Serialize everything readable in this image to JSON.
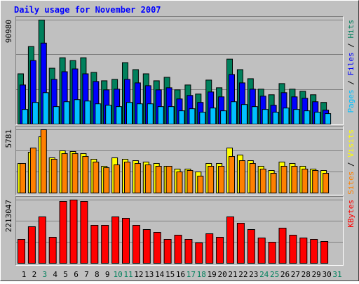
{
  "chart_data": {
    "type": "bar",
    "title": "Daily usage for November 2007",
    "categories": [
      1,
      2,
      3,
      4,
      5,
      6,
      7,
      8,
      9,
      10,
      11,
      12,
      13,
      14,
      15,
      16,
      17,
      18,
      19,
      20,
      21,
      22,
      23,
      24,
      25,
      26,
      27,
      28,
      29,
      30,
      31
    ],
    "category_colors": [
      "#000000",
      "#000000",
      "#00805C",
      "#000000",
      "#000000",
      "#000000",
      "#000000",
      "#000000",
      "#000000",
      "#00805C",
      "#00805C",
      "#000000",
      "#000000",
      "#000000",
      "#000000",
      "#000000",
      "#00805C",
      "#00805C",
      "#000000",
      "#000000",
      "#000000",
      "#000000",
      "#000000",
      "#00805C",
      "#00805C",
      "#000000",
      "#000000",
      "#000000",
      "#000000",
      "#000000",
      "#00805C"
    ],
    "legend_separator": " / ",
    "grid": true,
    "panels": [
      {
        "ylim": [
          0,
          90980
        ],
        "yticks": [
          90980
        ],
        "series": [
          {
            "name": "Hits",
            "color": "#00805C",
            "values": [
              43964,
              67777,
              90980,
              48850,
              58010,
              55567,
              58010,
              45186,
              37858,
              39080,
              53734,
              47628,
              43964,
              37858,
              40911,
              29920,
              34194,
              26256,
              38468,
              31752,
              56786,
              47628,
              39690,
              30531,
              25646,
              35416,
              30531,
              28699,
              25646,
              18929,
              null
            ]
          },
          {
            "name": "Files",
            "color": "#0000FF",
            "values": [
              34194,
              55567,
              70830,
              39078,
              45795,
              48237,
              43963,
              37247,
              29919,
              30530,
              39078,
              36025,
              33583,
              29919,
              31751,
              21982,
              25035,
              18929,
              28088,
              23813,
              43353,
              36025,
              30530,
              24424,
              16486,
              27477,
              23813,
              22592,
              19539,
              12212,
              null
            ]
          },
          {
            "name": "Pages",
            "color": "#00C0FF",
            "values": [
              12823,
              18929,
              27477,
              15265,
              19539,
              21371,
              20150,
              17707,
              16486,
              15265,
              18929,
              17707,
              17707,
              15265,
              15265,
              11601,
              13433,
              10380,
              14044,
              11601,
              19539,
              17097,
              15265,
              12823,
              10380,
              14044,
              12823,
              11601,
              10380,
              9159,
              null
            ]
          }
        ]
      },
      {
        "ylim": [
          0,
          5781
        ],
        "yticks": [
          5781
        ],
        "series": [
          {
            "name": "Visits",
            "color": "#FFFF00",
            "values": [
              2696,
              3724,
              5136,
              3210,
              3852,
              3788,
              3595,
              3082,
              2440,
              3210,
              3082,
              2953,
              2825,
              2696,
              2440,
              2183,
              2183,
              1926,
              2696,
              2696,
              4109,
              3467,
              2953,
              2440,
              2054,
              2825,
              2696,
              2440,
              2183,
              2054,
              null
            ]
          },
          {
            "name": "Sites",
            "color": "#FF8000",
            "values": [
              2696,
              4109,
              5781,
              3082,
              3595,
              3595,
              3338,
              2825,
              2311,
              2568,
              2825,
              2696,
              2568,
              2440,
              2440,
              1926,
              2054,
              1541,
              2440,
              2440,
              3338,
              2953,
              2696,
              2183,
              1798,
              2440,
              2440,
              2183,
              2054,
              1798,
              null
            ]
          }
        ]
      },
      {
        "ylim": [
          0,
          2213047
        ],
        "yticks": [
          2213047
        ],
        "series": [
          {
            "name": "KBytes",
            "color": "#FF0000",
            "values": [
              836026,
              1278628,
              1622874,
              909793,
              2163832,
              2213047,
              2163832,
              1327806,
              1327806,
              1622874,
              1573696,
              1327806,
              1180272,
              1081916,
              836026,
              983560,
              836026,
              713081,
              1032738,
              909793,
              1622874,
              1401573,
              1180272,
              885204,
              737670,
              1229450,
              983560,
              885204,
              836026,
              762259,
              null
            ]
          }
        ]
      }
    ]
  }
}
